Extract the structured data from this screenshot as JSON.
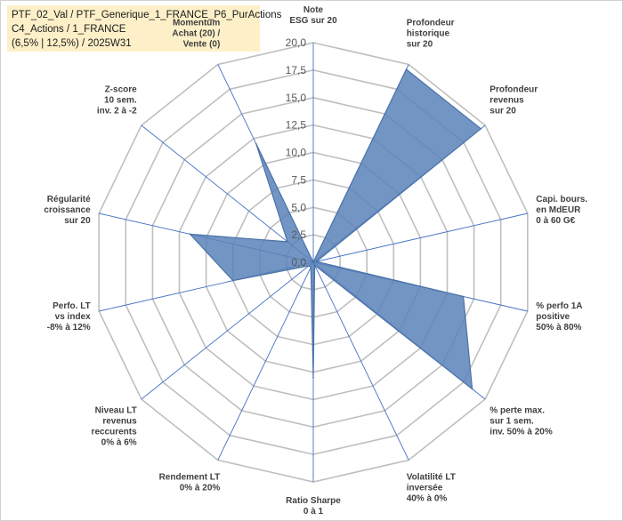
{
  "header": {
    "line1": "PTF_02_Val / PTF_Generique_1_FRANCE_P6_PurActions",
    "line2": "C4_Actions / 1_FRANCE",
    "line3": "(6,5% | 12,5%) / 2025W31"
  },
  "colors": {
    "fill": "#5b83b8",
    "stroke": "#4a72a8",
    "grid": "#bfbfbf",
    "axis": "#4472c4",
    "title_bg": "#fdf0c8"
  },
  "chart_data": {
    "type": "radar",
    "rmin": 0,
    "rmax": 20,
    "tick_labels": [
      "0,0",
      "2,5",
      "5,0",
      "7,5",
      "10,0",
      "12,5",
      "15,0",
      "17,5",
      "20,0"
    ],
    "grid": true,
    "axes": [
      {
        "label": [
          "Note",
          "ESG sur 20"
        ],
        "value": 0
      },
      {
        "label": [
          "Profondeur",
          "historique",
          "sur 20"
        ],
        "value": 19.5
      },
      {
        "label": [
          "Profondeur",
          "revenus",
          "sur 20"
        ],
        "value": 19.5
      },
      {
        "label": [
          "Capi. bours.",
          "en MdEUR",
          "0 à 60 G€"
        ],
        "value": 0.3
      },
      {
        "label": [
          "% perfo 1A",
          "positive",
          "50% à 80%"
        ],
        "value": 14
      },
      {
        "label": [
          "% perte max.",
          "sur 1 sem.",
          "inv. 50% à 20%"
        ],
        "value": 18.5
      },
      {
        "label": [
          "Volatilité LT",
          "inversée",
          "40% à 0%"
        ],
        "value": 0.3
      },
      {
        "label": [
          "Ratio Sharpe",
          "0 à 1"
        ],
        "value": 10.5
      },
      {
        "label": [
          "Rendement LT",
          "0% à 20%"
        ],
        "value": 0.5
      },
      {
        "label": [
          "Niveau LT",
          "revenus",
          "reccurents",
          "0% à 6%"
        ],
        "value": 0.5
      },
      {
        "label": [
          "Perfo. LT",
          "vs index",
          "-8% à 12%"
        ],
        "value": 7.5
      },
      {
        "label": [
          "Régularité",
          "croissance",
          "sur 20"
        ],
        "value": 11.5
      },
      {
        "label": [
          "Z-score",
          "10 sem.",
          "inv. 2 à -2"
        ],
        "value": 3
      },
      {
        "label": [
          "Momentum",
          "Achat (20) /",
          "Vente (0)"
        ],
        "value": 12
      }
    ]
  }
}
